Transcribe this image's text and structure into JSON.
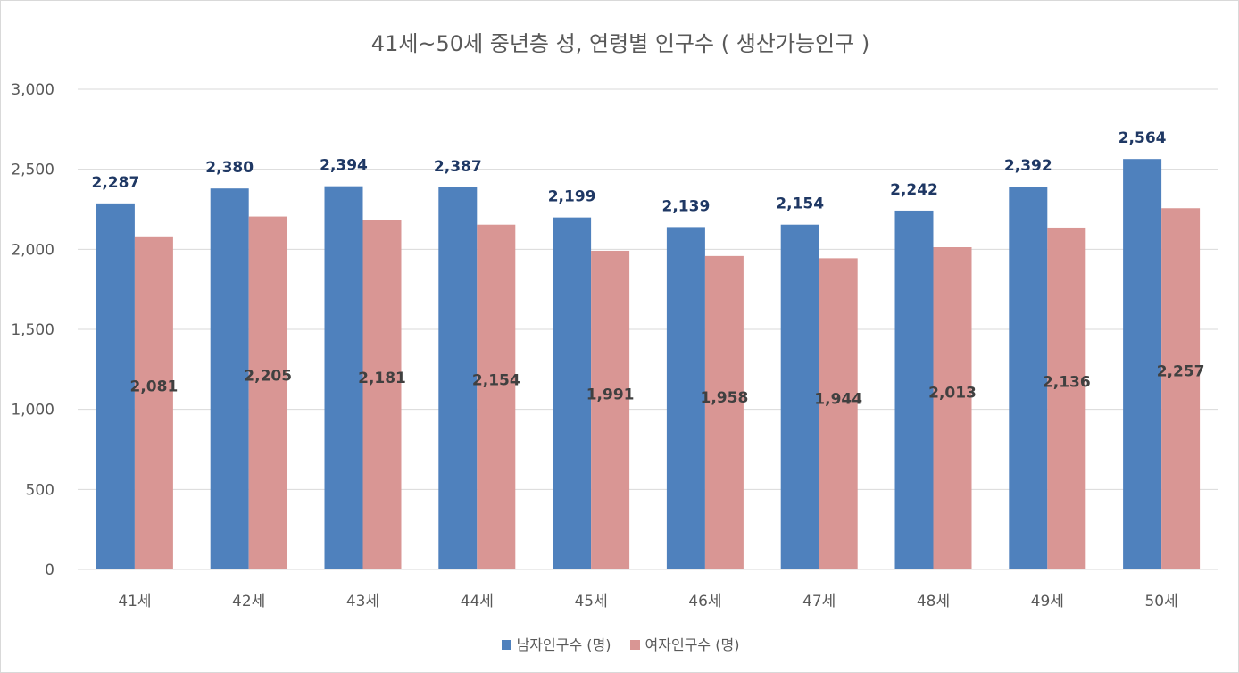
{
  "chart_data": {
    "type": "bar",
    "title": "41세~50세 중년층 성, 연령별 인구수 ( 생산가능인구 )",
    "categories": [
      "41세",
      "42세",
      "43세",
      "44세",
      "45세",
      "46세",
      "47세",
      "48세",
      "49세",
      "50세"
    ],
    "series": [
      {
        "name": "남자인구수 (명)",
        "color": "#4f81bd",
        "values": [
          2287,
          2380,
          2394,
          2387,
          2199,
          2139,
          2154,
          2242,
          2392,
          2564
        ],
        "labels": [
          "2,287",
          "2,380",
          "2,394",
          "2,387",
          "2,199",
          "2,139",
          "2,154",
          "2,242",
          "2,392",
          "2,564"
        ]
      },
      {
        "name": "여자인구수 (명)",
        "color": "#d99694",
        "values": [
          2081,
          2205,
          2181,
          2154,
          1991,
          1958,
          1944,
          2013,
          2136,
          2257
        ],
        "labels": [
          "2,081",
          "2,205",
          "2,181",
          "2,154",
          "1,991",
          "1,958",
          "1,944",
          "2,013",
          "2,136",
          "2,257"
        ]
      }
    ],
    "yticks": [
      "0",
      "500",
      "1,000",
      "1,500",
      "2,000",
      "2,500",
      "3,000"
    ],
    "ylim": [
      0,
      3000
    ],
    "grid": true,
    "legend_position": "bottom"
  }
}
